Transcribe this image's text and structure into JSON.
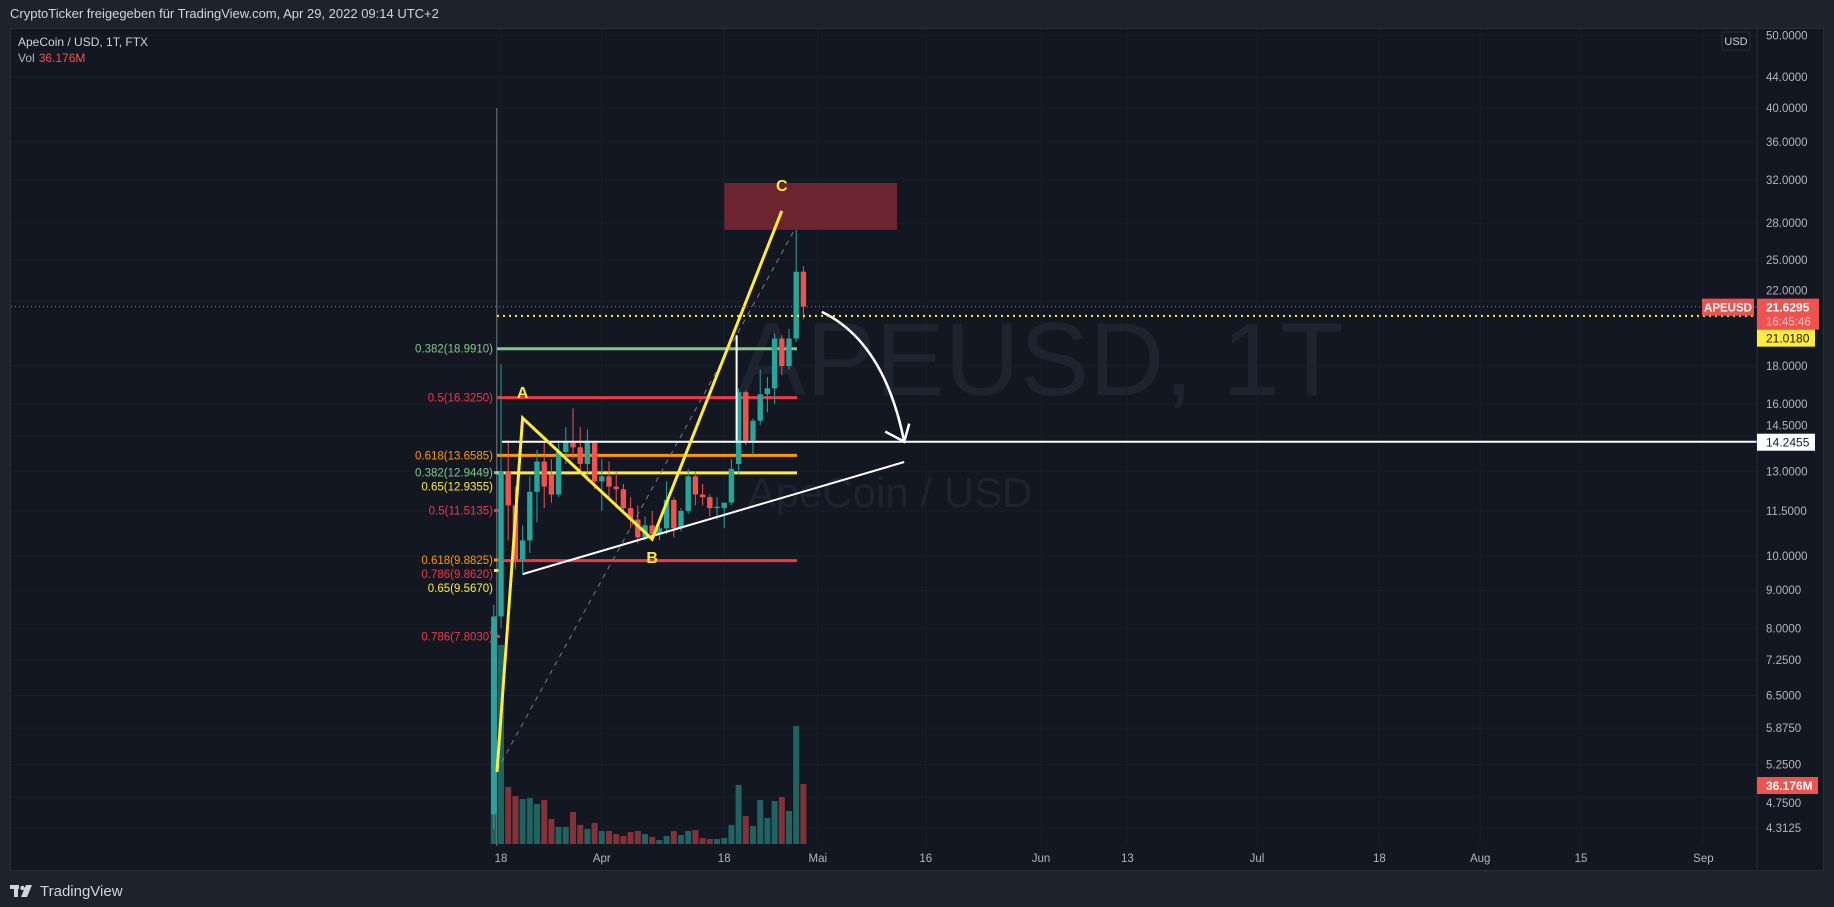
{
  "header": {
    "share_text": "CryptoTicker freigegeben für TradingView.com, Apr 29, 2022 09:14 UTC+2"
  },
  "legend": {
    "symbol": "ApeCoin / USD, 1T, FTX",
    "vol_label": "Vol",
    "vol_value": "36.176M"
  },
  "watermark": {
    "title": "APEUSD, 1T",
    "subtitle": "ApeCoin / USD"
  },
  "footer": {
    "brand": "TradingView",
    "logo_icon": "tradingview-logo-icon"
  },
  "colors": {
    "up": "#26a69a",
    "down": "#ef5350",
    "vol_up": "#1f6461",
    "vol_down": "#83323a",
    "background": "#131722",
    "grid": "#1a1e2a",
    "axis_text": "#b2b5be",
    "abc": "#ffeb3b",
    "zone": "#6b2430",
    "white": "#ffffff"
  },
  "chart_data": {
    "type": "candlestick",
    "symbol": "APEUSD",
    "scale": "log",
    "currency": "USD",
    "ylim": [
      4.2,
      52
    ],
    "xlim": [
      "2022-03-16",
      "2022-09-08"
    ],
    "grid": true,
    "y_ticks": [
      "50.0000",
      "44.0000",
      "40.0000",
      "36.0000",
      "32.0000",
      "28.0000",
      "25.0000",
      "22.0000",
      "18.0000",
      "16.0000",
      "14.5000",
      "13.0000",
      "11.5000",
      "10.0000",
      "9.0000",
      "8.0000",
      "7.2500",
      "6.5000",
      "5.8750",
      "5.2500",
      "4.7500",
      "4.3125"
    ],
    "x_ticks": [
      {
        "label": "18",
        "date": "2022-03-18"
      },
      {
        "label": "Apr",
        "date": "2022-04-01"
      },
      {
        "label": "18",
        "date": "2022-04-18"
      },
      {
        "label": "Mai",
        "date": "2022-05-01"
      },
      {
        "label": "16",
        "date": "2022-05-16"
      },
      {
        "label": "Jun",
        "date": "2022-06-01"
      },
      {
        "label": "13",
        "date": "2022-06-13"
      },
      {
        "label": "Jul",
        "date": "2022-07-01"
      },
      {
        "label": "18",
        "date": "2022-07-18"
      },
      {
        "label": "Aug",
        "date": "2022-08-01"
      },
      {
        "label": "15",
        "date": "2022-08-15"
      },
      {
        "label": "Sep",
        "date": "2022-09-01"
      }
    ],
    "start_date": "2022-03-17",
    "candles": [
      [
        4.5,
        8.6,
        4.3,
        8.3
      ],
      [
        8.3,
        18.1,
        8.0,
        13.0
      ],
      [
        13.0,
        14.3,
        10.5,
        11.7
      ],
      [
        11.7,
        12.4,
        9.6,
        9.9
      ],
      [
        9.9,
        11.0,
        9.5,
        10.5
      ],
      [
        10.5,
        12.8,
        10.1,
        12.2
      ],
      [
        12.2,
        13.9,
        11.1,
        13.4
      ],
      [
        13.4,
        14.2,
        11.6,
        12.4
      ],
      [
        12.9,
        13.5,
        11.8,
        12.1
      ],
      [
        12.1,
        14.3,
        12.0,
        13.8
      ],
      [
        13.8,
        14.9,
        13.3,
        14.2
      ],
      [
        14.2,
        15.8,
        13.5,
        14.0
      ],
      [
        14.0,
        14.9,
        13.0,
        13.3
      ],
      [
        13.3,
        14.8,
        12.6,
        14.2
      ],
      [
        14.2,
        14.2,
        12.3,
        12.6
      ],
      [
        12.6,
        13.5,
        11.5,
        12.8
      ],
      [
        12.8,
        13.4,
        12.0,
        12.4
      ],
      [
        12.4,
        13.0,
        11.6,
        12.3
      ],
      [
        12.3,
        12.5,
        11.5,
        11.6
      ],
      [
        11.6,
        12.0,
        10.9,
        11.2
      ],
      [
        11.2,
        11.7,
        10.4,
        10.6
      ],
      [
        10.6,
        11.3,
        10.5,
        11.0
      ],
      [
        11.0,
        11.5,
        10.5,
        10.7
      ],
      [
        10.7,
        11.0,
        10.5,
        10.9
      ],
      [
        10.9,
        12.6,
        10.7,
        11.9
      ],
      [
        11.9,
        12.0,
        10.6,
        10.9
      ],
      [
        10.9,
        11.6,
        10.8,
        11.5
      ],
      [
        11.5,
        13.1,
        11.4,
        12.8
      ],
      [
        12.8,
        13.0,
        11.7,
        12.1
      ],
      [
        12.1,
        12.5,
        11.7,
        12.0
      ],
      [
        12.0,
        12.1,
        11.3,
        11.6
      ],
      [
        11.6,
        12.0,
        11.2,
        11.65
      ],
      [
        11.6,
        11.8,
        10.9,
        11.8
      ],
      [
        11.8,
        13.5,
        11.7,
        13.1
      ],
      [
        13.3,
        16.8,
        12.9,
        16.6
      ],
      [
        16.6,
        16.7,
        14.1,
        14.3
      ],
      [
        14.3,
        15.3,
        13.7,
        15.2
      ],
      [
        15.2,
        17.8,
        15.0,
        16.5
      ],
      [
        16.5,
        17.4,
        15.6,
        16.8
      ],
      [
        16.8,
        19.9,
        16.0,
        19.6
      ],
      [
        19.6,
        19.8,
        17.5,
        18.0
      ],
      [
        18.0,
        20.2,
        17.8,
        19.6
      ],
      [
        19.6,
        27.7,
        19.4,
        24.1
      ],
      [
        24.1,
        24.5,
        20.8,
        21.6295
      ]
    ],
    "volume_millions": [
      130,
      120,
      34.4,
      28.9,
      27.1,
      27.7,
      24.1,
      26.5,
      15.1,
      10.3,
      10.3,
      19.3,
      11.5,
      9.0,
      12.7,
      7.8,
      7.8,
      6.0,
      4.8,
      7.2,
      7.8,
      6.0,
      4.2,
      2.4,
      4.8,
      7.8,
      5.4,
      7.8,
      8.4,
      3.6,
      3.0,
      3.0,
      3.6,
      11.5,
      35.6,
      16.9,
      10.9,
      26.5,
      15.7,
      25.9,
      28.3,
      19.9,
      71.2,
      36.176
    ],
    "last_price": {
      "symbol_label": "APEUSD",
      "price": "21.6295",
      "countdown": "16:45:46",
      "value": 21.6295
    },
    "alert_price": {
      "label": "21.0180",
      "value": 21.018
    },
    "horizontal_line": {
      "label": "14.2455",
      "value": 14.2455
    },
    "volume_label": "36.176M",
    "fib_levels": [
      {
        "label": "0.382(18.9910)",
        "value": 18.991,
        "color": "#81c784",
        "long": true
      },
      {
        "label": "0.5(16.3250)",
        "value": 16.325,
        "color": "#f23645",
        "long": true
      },
      {
        "label": "0.618(13.6585)",
        "value": 13.6585,
        "color": "#ff9800",
        "long": true
      },
      {
        "label": "0.382(12.9449)",
        "value": 12.9449,
        "color": "#81c784",
        "long": false
      },
      {
        "label": "0.65(12.9355)",
        "value": 12.9355,
        "color": "#ffeb3b",
        "long": true
      },
      {
        "label": "0.5(11.5135)",
        "value": 11.5135,
        "color": "#f23645",
        "long": false
      },
      {
        "label": "0.786(9.8620)",
        "value": 9.862,
        "color": "#f23645",
        "long": true
      },
      {
        "label": "0.618(9.8825)",
        "value": 9.8825,
        "color": "#ff9800",
        "long": false
      },
      {
        "label": "0.65(9.5670)",
        "value": 9.567,
        "color": "#ffeb3b",
        "long": false
      },
      {
        "label": "0.786(7.8030)",
        "value": 7.803,
        "color": "#f23645",
        "long": false
      }
    ],
    "abc_pattern": [
      {
        "label": "",
        "date": "2022-03-17",
        "price": 5.13
      },
      {
        "label": "A",
        "date": "2022-03-21",
        "price": 15.33
      },
      {
        "label": "B",
        "date": "2022-04-08",
        "price": 10.54
      },
      {
        "label": "C",
        "date": "2022-04-26",
        "price": 29.08
      }
    ],
    "target_zone": {
      "from": "2022-04-18",
      "to": "2022-05-12",
      "top": 31.7,
      "bottom": 27.43
    },
    "trendline": [
      {
        "date": "2022-03-21",
        "price": 9.46
      },
      {
        "date": "2022-05-13",
        "price": 13.38
      }
    ],
    "fib_trend_dashed": [
      {
        "date": "2022-03-17",
        "price": 5.15
      },
      {
        "date": "2022-04-28",
        "price": 27.7
      }
    ],
    "arrow": [
      {
        "date": "2022-05-01",
        "price": 21.28
      },
      {
        "date": "2022-05-13",
        "price": 14.25
      }
    ],
    "vertical_line_grey": {
      "date": "2022-03-17",
      "top": 40
    },
    "vertical_line_white": {
      "date": "2022-04-20",
      "top": 19.8,
      "bottom": 14.3
    },
    "currency_badge": "USD"
  }
}
